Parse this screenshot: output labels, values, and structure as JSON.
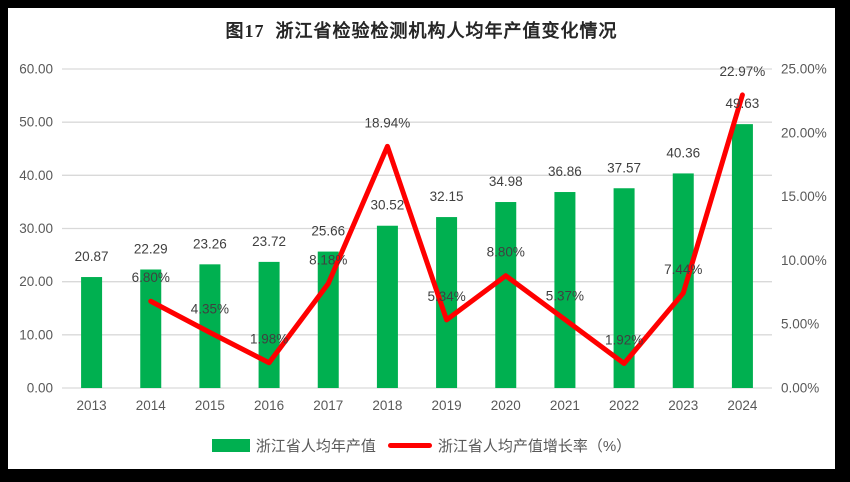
{
  "title": "图17  浙江省检验检测机构人均年产值变化情况",
  "colors": {
    "bar": "#00B050",
    "line": "#FF0000",
    "gridline": "#D9D9D9",
    "tick_label": "#595959",
    "data_label": "#404040",
    "title": "#262626",
    "frame": "#000000",
    "panel_background": "#FFFFFF"
  },
  "chart_data": {
    "type": "bar+line combo",
    "title": "图17  浙江省检验检测机构人均年产值变化情况",
    "categories": [
      "2013",
      "2014",
      "2015",
      "2016",
      "2017",
      "2018",
      "2019",
      "2020",
      "2021",
      "2022",
      "2023",
      "2024"
    ],
    "series": [
      {
        "name": "浙江省人均年产值",
        "type": "bar",
        "axis": "left",
        "color": "#00B050",
        "values": [
          20.87,
          22.29,
          23.26,
          23.72,
          25.66,
          30.52,
          32.15,
          34.98,
          36.86,
          37.57,
          40.36,
          49.63
        ],
        "labels": [
          "20.87",
          "22.29",
          "23.26",
          "23.72",
          "25.66",
          "30.52",
          "32.15",
          "34.98",
          "36.86",
          "37.57",
          "40.36",
          "49.63"
        ]
      },
      {
        "name": "浙江省人均产值增长率（%）",
        "type": "line",
        "axis": "right",
        "color": "#FF0000",
        "values": [
          null,
          6.8,
          4.35,
          1.98,
          8.18,
          18.94,
          5.34,
          8.8,
          5.37,
          1.92,
          7.44,
          22.97
        ],
        "labels": [
          null,
          "6.80%",
          "4.35%",
          "1.98%",
          "8.18%",
          "18.94%",
          "5.34%",
          "8.80%",
          "5.37%",
          "1.92%",
          "7.44%",
          "22.97%"
        ]
      }
    ],
    "left_axis": {
      "min": 0,
      "max": 60,
      "step": 10,
      "tick_labels": [
        "0.00",
        "10.00",
        "20.00",
        "30.00",
        "40.00",
        "50.00",
        "60.00"
      ]
    },
    "right_axis": {
      "min": 0,
      "max": 25,
      "step": 5,
      "tick_labels": [
        "0.00%",
        "5.00%",
        "10.00%",
        "15.00%",
        "20.00%",
        "25.00%"
      ]
    },
    "grid": true,
    "legend_position": "bottom",
    "xlabel": "",
    "ylabel": ""
  },
  "legend": {
    "bar_label": "浙江省人均年产值",
    "line_label": "浙江省人均产值增长率（%）"
  }
}
